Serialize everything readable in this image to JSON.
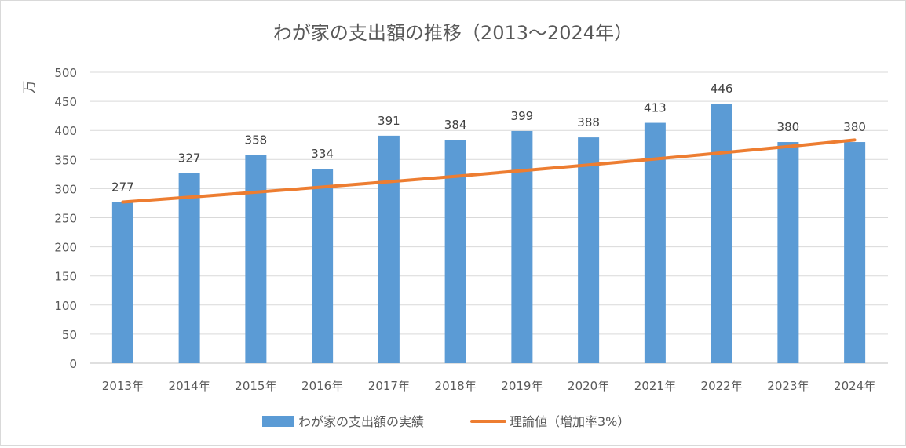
{
  "chart_data": {
    "type": "bar",
    "title": "わが家の支出額の推移（2013～2024年）",
    "ylabel": "万",
    "xlabel": "",
    "categories": [
      "2013年",
      "2014年",
      "2015年",
      "2016年",
      "2017年",
      "2018年",
      "2019年",
      "2020年",
      "2021年",
      "2022年",
      "2023年",
      "2024年"
    ],
    "series": [
      {
        "name": "わが家の支出額の実績",
        "type": "bar",
        "color": "#5b9bd5",
        "values": [
          277,
          327,
          358,
          334,
          391,
          384,
          399,
          388,
          413,
          446,
          380,
          380
        ],
        "data_labels": true
      },
      {
        "name": "理論値（増加率3%）",
        "type": "line",
        "color": "#ed7d31",
        "values": [
          277,
          285.3,
          293.9,
          302.7,
          311.8,
          321.1,
          330.8,
          340.7,
          350.9,
          361.4,
          372.3,
          383.5
        ],
        "data_labels": false
      }
    ],
    "ylim": [
      0,
      500
    ],
    "yticks": [
      0,
      50,
      100,
      150,
      200,
      250,
      300,
      350,
      400,
      450,
      500
    ],
    "grid": true,
    "legend_position": "bottom"
  }
}
